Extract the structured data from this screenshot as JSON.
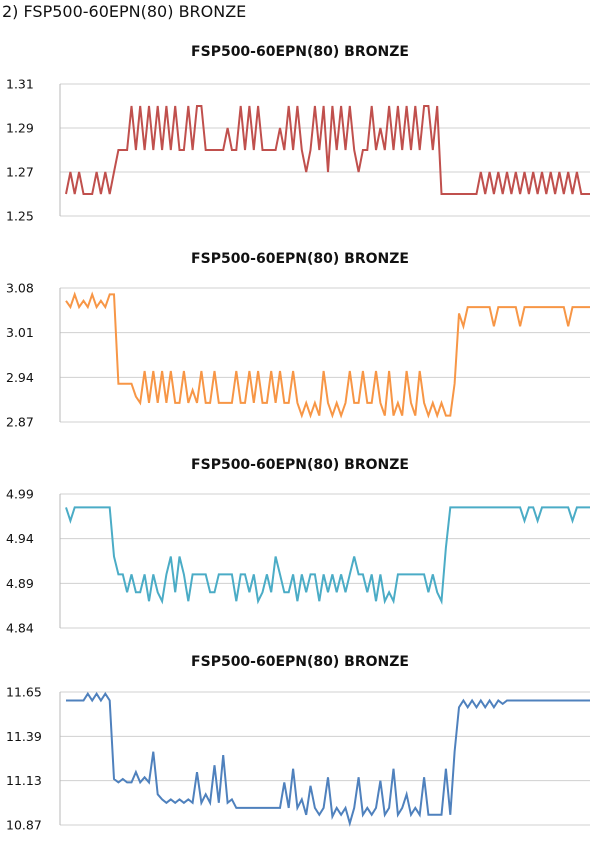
{
  "heading": "2) FSP500-60EPN(80) BRONZE",
  "chart_data": [
    {
      "type": "line",
      "title": "FSP500-60EPN(80) BRONZE",
      "ylim": [
        1.25,
        1.31
      ],
      "yticks": [
        "1.31",
        "1.29",
        "1.27",
        "1.25"
      ],
      "grid": true,
      "legend": "none",
      "color": "#c0504d",
      "series": [
        {
          "x": [
            0,
            1,
            2,
            3,
            4,
            5,
            6,
            7,
            8,
            9,
            10,
            11,
            12,
            13,
            14,
            15,
            16,
            17,
            18,
            19,
            20,
            21,
            22,
            23,
            24,
            25,
            26,
            27,
            28,
            29,
            30,
            31,
            32,
            33,
            34,
            35,
            36,
            37,
            38,
            39,
            40,
            41,
            42,
            43,
            44,
            45,
            46,
            47,
            48,
            49,
            50,
            51,
            52,
            53,
            54,
            55,
            56,
            57,
            58,
            59,
            60,
            61,
            62,
            63,
            64,
            65,
            66,
            67,
            68,
            69,
            70,
            71,
            72,
            73,
            74,
            75,
            76,
            77,
            78,
            79,
            80,
            81,
            82,
            83,
            84,
            85,
            86,
            87,
            88,
            89,
            90,
            91,
            92,
            93,
            94,
            95,
            96,
            97,
            98,
            99,
            100,
            101,
            102,
            103,
            104,
            105,
            106,
            107,
            108,
            109,
            110,
            111,
            112,
            113,
            114,
            115,
            116,
            117,
            118,
            119,
            120
          ],
          "y": [
            1.26,
            1.27,
            1.26,
            1.27,
            1.26,
            1.26,
            1.26,
            1.27,
            1.26,
            1.27,
            1.26,
            1.27,
            1.28,
            1.28,
            1.28,
            1.3,
            1.28,
            1.3,
            1.28,
            1.3,
            1.28,
            1.3,
            1.28,
            1.3,
            1.28,
            1.3,
            1.28,
            1.28,
            1.3,
            1.28,
            1.3,
            1.3,
            1.28,
            1.28,
            1.28,
            1.28,
            1.28,
            1.29,
            1.28,
            1.28,
            1.3,
            1.28,
            1.3,
            1.28,
            1.3,
            1.28,
            1.28,
            1.28,
            1.28,
            1.29,
            1.28,
            1.3,
            1.28,
            1.3,
            1.28,
            1.27,
            1.28,
            1.3,
            1.28,
            1.3,
            1.27,
            1.3,
            1.28,
            1.3,
            1.28,
            1.3,
            1.28,
            1.27,
            1.28,
            1.28,
            1.3,
            1.28,
            1.29,
            1.28,
            1.3,
            1.28,
            1.3,
            1.28,
            1.3,
            1.28,
            1.3,
            1.28,
            1.3,
            1.3,
            1.28,
            1.3,
            1.26,
            1.26,
            1.26,
            1.26,
            1.26,
            1.26,
            1.26,
            1.26,
            1.26,
            1.27,
            1.26,
            1.27,
            1.26,
            1.27,
            1.26,
            1.27,
            1.26,
            1.27,
            1.26,
            1.27,
            1.26,
            1.27,
            1.26,
            1.27,
            1.26,
            1.27,
            1.26,
            1.27,
            1.26,
            1.27,
            1.26,
            1.27,
            1.26,
            1.26,
            1.26
          ]
        }
      ]
    },
    {
      "type": "line",
      "title": "FSP500-60EPN(80) BRONZE",
      "ylim": [
        2.87,
        3.08
      ],
      "yticks": [
        "3.08",
        "3.01",
        "2.94",
        "2.87"
      ],
      "grid": true,
      "legend": "none",
      "color": "#f79646",
      "series": [
        {
          "x": [
            0,
            1,
            2,
            3,
            4,
            5,
            6,
            7,
            8,
            9,
            10,
            11,
            12,
            13,
            14,
            15,
            16,
            17,
            18,
            19,
            20,
            21,
            22,
            23,
            24,
            25,
            26,
            27,
            28,
            29,
            30,
            31,
            32,
            33,
            34,
            35,
            36,
            37,
            38,
            39,
            40,
            41,
            42,
            43,
            44,
            45,
            46,
            47,
            48,
            49,
            50,
            51,
            52,
            53,
            54,
            55,
            56,
            57,
            58,
            59,
            60,
            61,
            62,
            63,
            64,
            65,
            66,
            67,
            68,
            69,
            70,
            71,
            72,
            73,
            74,
            75,
            76,
            77,
            78,
            79,
            80,
            81,
            82,
            83,
            84,
            85,
            86,
            87,
            88,
            89,
            90,
            91,
            92,
            93,
            94,
            95,
            96,
            97,
            98,
            99,
            100,
            101,
            102,
            103,
            104,
            105,
            106,
            107,
            108,
            109,
            110,
            111,
            112,
            113,
            114,
            115,
            116,
            117,
            118,
            119,
            120
          ],
          "y": [
            3.06,
            3.05,
            3.07,
            3.05,
            3.06,
            3.05,
            3.07,
            3.05,
            3.06,
            3.05,
            3.07,
            3.07,
            2.93,
            2.93,
            2.93,
            2.93,
            2.91,
            2.9,
            2.95,
            2.9,
            2.95,
            2.9,
            2.95,
            2.9,
            2.95,
            2.9,
            2.9,
            2.95,
            2.9,
            2.92,
            2.9,
            2.95,
            2.9,
            2.9,
            2.95,
            2.9,
            2.9,
            2.9,
            2.9,
            2.95,
            2.9,
            2.9,
            2.95,
            2.9,
            2.95,
            2.9,
            2.9,
            2.95,
            2.9,
            2.95,
            2.9,
            2.9,
            2.95,
            2.9,
            2.88,
            2.9,
            2.88,
            2.9,
            2.88,
            2.95,
            2.9,
            2.88,
            2.9,
            2.88,
            2.9,
            2.95,
            2.9,
            2.9,
            2.95,
            2.9,
            2.9,
            2.95,
            2.9,
            2.88,
            2.95,
            2.88,
            2.9,
            2.88,
            2.95,
            2.9,
            2.88,
            2.95,
            2.9,
            2.88,
            2.9,
            2.88,
            2.9,
            2.88,
            2.88,
            2.93,
            3.04,
            3.02,
            3.05,
            3.05,
            3.05,
            3.05,
            3.05,
            3.05,
            3.02,
            3.05,
            3.05,
            3.05,
            3.05,
            3.05,
            3.02,
            3.05,
            3.05,
            3.05,
            3.05,
            3.05,
            3.05,
            3.05,
            3.05,
            3.05,
            3.05,
            3.02,
            3.05,
            3.05,
            3.05,
            3.05,
            3.05
          ]
        }
      ]
    },
    {
      "type": "line",
      "title": "FSP500-60EPN(80) BRONZE",
      "ylim": [
        4.84,
        4.99
      ],
      "yticks": [
        "4.99",
        "4.94",
        "4.89",
        "4.84"
      ],
      "grid": true,
      "legend": "none",
      "color": "#4bacc6",
      "series": [
        {
          "x": [
            0,
            1,
            2,
            3,
            4,
            5,
            6,
            7,
            8,
            9,
            10,
            11,
            12,
            13,
            14,
            15,
            16,
            17,
            18,
            19,
            20,
            21,
            22,
            23,
            24,
            25,
            26,
            27,
            28,
            29,
            30,
            31,
            32,
            33,
            34,
            35,
            36,
            37,
            38,
            39,
            40,
            41,
            42,
            43,
            44,
            45,
            46,
            47,
            48,
            49,
            50,
            51,
            52,
            53,
            54,
            55,
            56,
            57,
            58,
            59,
            60,
            61,
            62,
            63,
            64,
            65,
            66,
            67,
            68,
            69,
            70,
            71,
            72,
            73,
            74,
            75,
            76,
            77,
            78,
            79,
            80,
            81,
            82,
            83,
            84,
            85,
            86,
            87,
            88,
            89,
            90,
            91,
            92,
            93,
            94,
            95,
            96,
            97,
            98,
            99,
            100,
            101,
            102,
            103,
            104,
            105,
            106,
            107,
            108,
            109,
            110,
            111,
            112,
            113,
            114,
            115,
            116,
            117,
            118,
            119,
            120
          ],
          "y": [
            4.975,
            4.96,
            4.975,
            4.975,
            4.975,
            4.975,
            4.975,
            4.975,
            4.975,
            4.975,
            4.975,
            4.92,
            4.9,
            4.9,
            4.88,
            4.9,
            4.88,
            4.88,
            4.9,
            4.87,
            4.9,
            4.88,
            4.87,
            4.9,
            4.92,
            4.88,
            4.92,
            4.9,
            4.87,
            4.9,
            4.9,
            4.9,
            4.9,
            4.88,
            4.88,
            4.9,
            4.9,
            4.9,
            4.9,
            4.87,
            4.9,
            4.9,
            4.88,
            4.9,
            4.87,
            4.88,
            4.9,
            4.88,
            4.92,
            4.9,
            4.88,
            4.88,
            4.9,
            4.87,
            4.9,
            4.88,
            4.9,
            4.9,
            4.87,
            4.9,
            4.88,
            4.9,
            4.88,
            4.9,
            4.88,
            4.9,
            4.92,
            4.9,
            4.9,
            4.88,
            4.9,
            4.87,
            4.9,
            4.87,
            4.88,
            4.87,
            4.9,
            4.9,
            4.9,
            4.9,
            4.9,
            4.9,
            4.9,
            4.88,
            4.9,
            4.88,
            4.87,
            4.93,
            4.975,
            4.975,
            4.975,
            4.975,
            4.975,
            4.975,
            4.975,
            4.975,
            4.975,
            4.975,
            4.975,
            4.975,
            4.975,
            4.975,
            4.975,
            4.975,
            4.975,
            4.96,
            4.975,
            4.975,
            4.96,
            4.975,
            4.975,
            4.975,
            4.975,
            4.975,
            4.975,
            4.975,
            4.96,
            4.975,
            4.975,
            4.975,
            4.975
          ]
        }
      ]
    },
    {
      "type": "line",
      "title": "FSP500-60EPN(80) BRONZE",
      "ylim": [
        10.87,
        11.65
      ],
      "yticks": [
        "11.65",
        "11.39",
        "11.13",
        "10.87"
      ],
      "grid": true,
      "legend": "none",
      "color": "#4f81bd",
      "series": [
        {
          "x": [
            0,
            1,
            2,
            3,
            4,
            5,
            6,
            7,
            8,
            9,
            10,
            11,
            12,
            13,
            14,
            15,
            16,
            17,
            18,
            19,
            20,
            21,
            22,
            23,
            24,
            25,
            26,
            27,
            28,
            29,
            30,
            31,
            32,
            33,
            34,
            35,
            36,
            37,
            38,
            39,
            40,
            41,
            42,
            43,
            44,
            45,
            46,
            47,
            48,
            49,
            50,
            51,
            52,
            53,
            54,
            55,
            56,
            57,
            58,
            59,
            60,
            61,
            62,
            63,
            64,
            65,
            66,
            67,
            68,
            69,
            70,
            71,
            72,
            73,
            74,
            75,
            76,
            77,
            78,
            79,
            80,
            81,
            82,
            83,
            84,
            85,
            86,
            87,
            88,
            89,
            90,
            91,
            92,
            93,
            94,
            95,
            96,
            97,
            98,
            99,
            100,
            101,
            102,
            103,
            104,
            105,
            106,
            107,
            108,
            109,
            110,
            111,
            112,
            113,
            114,
            115,
            116,
            117,
            118,
            119,
            120
          ],
          "y": [
            11.6,
            11.6,
            11.6,
            11.6,
            11.6,
            11.64,
            11.6,
            11.64,
            11.6,
            11.64,
            11.6,
            11.14,
            11.12,
            11.14,
            11.12,
            11.12,
            11.18,
            11.12,
            11.15,
            11.12,
            11.3,
            11.05,
            11.02,
            11.0,
            11.02,
            11.0,
            11.02,
            11.0,
            11.02,
            11.0,
            11.18,
            11.0,
            11.05,
            11.0,
            11.22,
            11.0,
            11.28,
            11.0,
            11.02,
            10.97,
            10.97,
            10.97,
            10.97,
            10.97,
            10.97,
            10.97,
            10.97,
            10.97,
            10.97,
            10.97,
            11.12,
            10.97,
            11.2,
            10.97,
            11.02,
            10.93,
            11.1,
            10.97,
            10.93,
            10.97,
            11.15,
            10.92,
            10.97,
            10.93,
            10.97,
            10.88,
            10.97,
            11.15,
            10.93,
            10.97,
            10.93,
            10.97,
            11.13,
            10.93,
            10.97,
            11.2,
            10.93,
            10.97,
            11.05,
            10.93,
            10.97,
            10.93,
            11.15,
            10.93,
            10.93,
            10.93,
            10.93,
            11.2,
            10.93,
            11.3,
            11.56,
            11.6,
            11.56,
            11.6,
            11.56,
            11.6,
            11.56,
            11.6,
            11.56,
            11.6,
            11.58,
            11.6,
            11.6,
            11.6,
            11.6,
            11.6,
            11.6,
            11.6,
            11.6,
            11.6,
            11.6,
            11.6,
            11.6,
            11.6,
            11.6,
            11.6,
            11.6,
            11.6,
            11.6,
            11.6,
            11.6
          ]
        }
      ]
    }
  ]
}
